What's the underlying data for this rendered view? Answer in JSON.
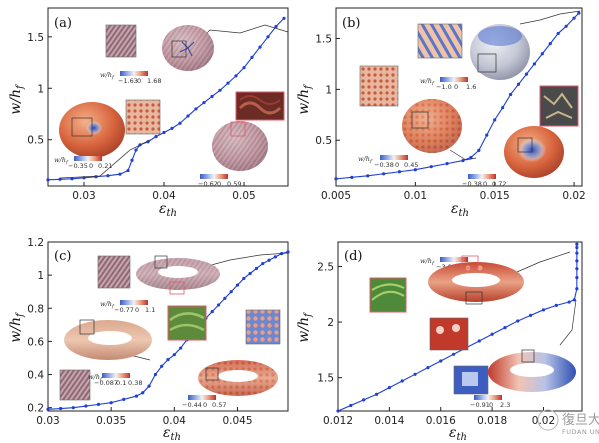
{
  "colors": {
    "series": "#1f3fd6",
    "guide": "#333333",
    "inset_border": "#e25a6a"
  },
  "chart_data": [
    {
      "panel": "(a)",
      "type": "line",
      "xlabel": "ε_th",
      "ylabel": "w/h_f",
      "xlim": [
        0.0255,
        0.0555
      ],
      "ylim": [
        0.05,
        1.78
      ],
      "xticks": [
        0.03,
        0.04,
        0.05
      ],
      "yticks": [
        0.5,
        1,
        1.5
      ],
      "xtick_labels": [
        "0.03",
        "0.04",
        "0.05"
      ],
      "ytick_labels": [
        "0.5",
        "1",
        "1.5"
      ],
      "series": [
        {
          "x": [
            0.0255,
            0.027,
            0.0285,
            0.03,
            0.0315,
            0.033,
            0.0345,
            0.0355,
            0.036,
            0.0365,
            0.037,
            0.038,
            0.039,
            0.04,
            0.041,
            0.042,
            0.043,
            0.044,
            0.045,
            0.046,
            0.047,
            0.048,
            0.049,
            0.05,
            0.051,
            0.052,
            0.053,
            0.054,
            0.055
          ],
          "y": [
            0.11,
            0.115,
            0.12,
            0.13,
            0.14,
            0.15,
            0.165,
            0.2,
            0.3,
            0.4,
            0.45,
            0.48,
            0.53,
            0.57,
            0.61,
            0.66,
            0.73,
            0.8,
            0.86,
            0.92,
            0.98,
            1.05,
            1.12,
            1.2,
            1.3,
            1.4,
            1.5,
            1.6,
            1.68
          ]
        }
      ],
      "colorbars": [
        {
          "label": "w/h_f",
          "ticks": [
            "−1.63",
            "0",
            "1.68"
          ]
        },
        {
          "label": "w/h_f",
          "ticks": [
            "−0.35",
            "0",
            "0.21"
          ]
        },
        {
          "label": "w/h_f",
          "ticks": [
            "−0.62",
            "0",
            "0.59"
          ]
        }
      ]
    },
    {
      "panel": "(b)",
      "type": "line",
      "xlabel": "ε_th",
      "ylabel": "w/h_f",
      "xlim": [
        0.005,
        0.0205
      ],
      "ylim": [
        0.05,
        1.8
      ],
      "xticks": [
        0.005,
        0.01,
        0.015,
        0.02
      ],
      "yticks": [
        0.5,
        1,
        1.5
      ],
      "xtick_labels": [
        "0.005",
        "0.01",
        "0.015",
        "0.02"
      ],
      "ytick_labels": [
        "0.5",
        "1",
        "1.5"
      ],
      "series": [
        {
          "x": [
            0.005,
            0.006,
            0.007,
            0.008,
            0.009,
            0.01,
            0.011,
            0.012,
            0.013,
            0.0135,
            0.014,
            0.0145,
            0.015,
            0.0155,
            0.016,
            0.0165,
            0.017,
            0.0175,
            0.018,
            0.0185,
            0.019,
            0.0195,
            0.02,
            0.0203
          ],
          "y": [
            0.12,
            0.135,
            0.15,
            0.17,
            0.19,
            0.21,
            0.24,
            0.27,
            0.3,
            0.33,
            0.4,
            0.55,
            0.7,
            0.82,
            0.95,
            1.05,
            1.15,
            1.25,
            1.35,
            1.45,
            1.55,
            1.62,
            1.7,
            1.75
          ]
        }
      ],
      "colorbars": [
        {
          "label": "w/h_f",
          "ticks": [
            "−1.0",
            "0",
            "1.6"
          ]
        },
        {
          "label": "w/h_f",
          "ticks": [
            "−0.38",
            "0",
            "0.45"
          ]
        },
        {
          "label": "w/h_f",
          "ticks": [
            "−0.38",
            "0",
            "0.72"
          ]
        }
      ]
    },
    {
      "panel": "(c)",
      "type": "line",
      "xlabel": "ε_th",
      "ylabel": "w/h_f",
      "xlim": [
        0.03,
        0.049
      ],
      "ylim": [
        0.18,
        1.2
      ],
      "xticks": [
        0.03,
        0.035,
        0.04,
        0.045
      ],
      "yticks": [
        0.2,
        0.4,
        0.6,
        0.8,
        1,
        1.2
      ],
      "xtick_labels": [
        "0.03",
        "0.035",
        "0.04",
        "0.045"
      ],
      "ytick_labels": [
        "0.2",
        "0.4",
        "0.6",
        "0.8",
        "1",
        "1.2"
      ],
      "series": [
        {
          "x": [
            0.03,
            0.031,
            0.032,
            0.033,
            0.034,
            0.035,
            0.036,
            0.037,
            0.0375,
            0.038,
            0.0385,
            0.039,
            0.0395,
            0.04,
            0.0405,
            0.041,
            0.0415,
            0.042,
            0.0425,
            0.043,
            0.0435,
            0.044,
            0.0445,
            0.045,
            0.0455,
            0.046,
            0.0465,
            0.047,
            0.0475,
            0.048,
            0.0485,
            0.049
          ],
          "y": [
            0.19,
            0.195,
            0.2,
            0.21,
            0.22,
            0.23,
            0.25,
            0.27,
            0.29,
            0.33,
            0.4,
            0.45,
            0.49,
            0.52,
            0.56,
            0.61,
            0.66,
            0.7,
            0.74,
            0.78,
            0.82,
            0.86,
            0.9,
            0.94,
            0.98,
            1.01,
            1.04,
            1.07,
            1.09,
            1.11,
            1.13,
            1.14
          ]
        }
      ],
      "colorbars": [
        {
          "label": "w/h_f",
          "ticks": [
            "−0.77",
            "0",
            "1.1"
          ]
        },
        {
          "label": "w/h_f",
          "ticks": [
            "−0.087",
            "0.1",
            "0.38"
          ]
        },
        {
          "label": "w/h_f",
          "ticks": [
            "−0.44",
            "0",
            "0.57"
          ]
        }
      ]
    },
    {
      "panel": "(d)",
      "type": "line",
      "xlabel": "ε_th",
      "ylabel": "w/h_f",
      "xlim": [
        0.012,
        0.0215
      ],
      "ylim": [
        1.2,
        2.72
      ],
      "xticks": [
        0.012,
        0.014,
        0.016,
        0.018,
        0.02
      ],
      "yticks": [
        1.5,
        2,
        2.5
      ],
      "xtick_labels": [
        "0.012",
        "0.014",
        "0.016",
        "0.018",
        "0.02"
      ],
      "ytick_labels": [
        "1.5",
        "2",
        "2.5"
      ],
      "series": [
        {
          "x": [
            0.012,
            0.0125,
            0.013,
            0.0135,
            0.014,
            0.0145,
            0.015,
            0.0155,
            0.016,
            0.0165,
            0.017,
            0.0175,
            0.018,
            0.0185,
            0.019,
            0.0195,
            0.02,
            0.0205,
            0.021,
            0.0212,
            0.0213,
            0.0213,
            0.0213,
            0.0213,
            0.0213,
            0.0213,
            0.0213
          ],
          "y": [
            1.2,
            1.25,
            1.3,
            1.35,
            1.41,
            1.47,
            1.53,
            1.59,
            1.65,
            1.71,
            1.77,
            1.83,
            1.89,
            1.95,
            2.01,
            2.06,
            2.11,
            2.15,
            2.18,
            2.2,
            2.3,
            2.4,
            2.48,
            2.55,
            2.62,
            2.67,
            2.7
          ]
        }
      ],
      "colorbars": [
        {
          "label": "w/h_f",
          "ticks": [
            "−3.0",
            "0",
            "2.7"
          ]
        },
        {
          "label": "w/h_f",
          "ticks": [
            "−0.91",
            "0",
            "2.3"
          ]
        }
      ]
    }
  ],
  "watermark": {
    "chinese": "復旦大學",
    "english": "FUDAN UNIVERSITY"
  }
}
